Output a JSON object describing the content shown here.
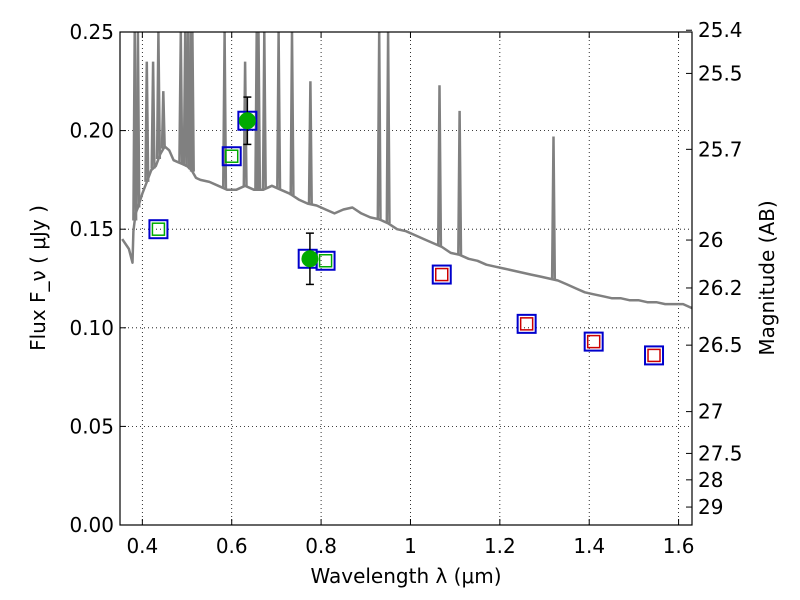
{
  "chart_data": {
    "type": "scatter",
    "xlabel": "Wavelength  λ (μm)",
    "ylabel": "Flux  F_ν  ( μJy )",
    "y2label": "Magnitude (AB)",
    "xlim": [
      0.35,
      1.63
    ],
    "ylim": [
      0.0,
      0.25
    ],
    "xticks": [
      0.4,
      0.6,
      0.8,
      1.0,
      1.2,
      1.4,
      1.6
    ],
    "xtick_labels": [
      "0.4",
      "0.6",
      "0.8",
      "1",
      "1.2",
      "1.4",
      "1.6"
    ],
    "yticks": [
      0.0,
      0.05,
      0.1,
      0.15,
      0.2,
      0.25
    ],
    "ytick_labels": [
      "0.00",
      "0.05",
      "0.10",
      "0.15",
      "0.20",
      "0.25"
    ],
    "y2ticks": [
      {
        "label": "25.4",
        "flux": 0.2509
      },
      {
        "label": "25.5",
        "flux": 0.229
      },
      {
        "label": "25.7",
        "flux": 0.1905
      },
      {
        "label": "26",
        "flux": 0.1445
      },
      {
        "label": "26.2",
        "flux": 0.1202
      },
      {
        "label": "26.5",
        "flux": 0.0912
      },
      {
        "label": "27",
        "flux": 0.0575
      },
      {
        "label": "27.5",
        "flux": 0.0363
      },
      {
        "label": "28",
        "flux": 0.0229
      },
      {
        "label": "29",
        "flux": 0.0091
      }
    ],
    "grid": true,
    "series": [
      {
        "kind": "spectrum",
        "color": "#808080",
        "x": [
          0.355,
          0.37,
          0.378,
          0.38,
          0.385,
          0.39,
          0.4,
          0.41,
          0.42,
          0.43,
          0.44,
          0.45,
          0.46,
          0.47,
          0.48,
          0.49,
          0.5,
          0.51,
          0.52,
          0.53,
          0.55,
          0.57,
          0.59,
          0.61,
          0.63,
          0.65,
          0.67,
          0.69,
          0.71,
          0.73,
          0.75,
          0.77,
          0.79,
          0.81,
          0.83,
          0.85,
          0.87,
          0.89,
          0.91,
          0.93,
          0.95,
          0.97,
          0.99,
          1.01,
          1.03,
          1.05,
          1.07,
          1.09,
          1.11,
          1.13,
          1.15,
          1.17,
          1.19,
          1.21,
          1.23,
          1.25,
          1.27,
          1.29,
          1.31,
          1.33,
          1.35,
          1.37,
          1.39,
          1.41,
          1.43,
          1.45,
          1.47,
          1.49,
          1.51,
          1.53,
          1.55,
          1.57,
          1.59,
          1.61,
          1.63
        ],
        "y": [
          0.145,
          0.14,
          0.133,
          0.149,
          0.158,
          0.161,
          0.168,
          0.174,
          0.18,
          0.182,
          0.188,
          0.192,
          0.19,
          0.185,
          0.184,
          0.183,
          0.182,
          0.18,
          0.176,
          0.175,
          0.174,
          0.172,
          0.17,
          0.17,
          0.172,
          0.17,
          0.17,
          0.172,
          0.17,
          0.168,
          0.165,
          0.163,
          0.162,
          0.16,
          0.158,
          0.16,
          0.161,
          0.158,
          0.156,
          0.155,
          0.153,
          0.15,
          0.149,
          0.147,
          0.145,
          0.143,
          0.141,
          0.138,
          0.137,
          0.135,
          0.134,
          0.132,
          0.131,
          0.13,
          0.129,
          0.128,
          0.127,
          0.126,
          0.125,
          0.124,
          0.122,
          0.12,
          0.118,
          0.117,
          0.116,
          0.115,
          0.115,
          0.114,
          0.114,
          0.113,
          0.113,
          0.112,
          0.112,
          0.112,
          0.11
        ]
      },
      {
        "kind": "emission_lines",
        "color": "#808080",
        "lines": [
          {
            "x": 0.383,
            "peak": 0.25
          },
          {
            "x": 0.39,
            "peak": 0.25
          },
          {
            "x": 0.41,
            "peak": 0.235
          },
          {
            "x": 0.424,
            "peak": 0.235
          },
          {
            "x": 0.436,
            "peak": 0.25
          },
          {
            "x": 0.447,
            "peak": 0.22
          },
          {
            "x": 0.486,
            "peak": 0.25
          },
          {
            "x": 0.496,
            "peak": 0.25
          },
          {
            "x": 0.502,
            "peak": 0.25
          },
          {
            "x": 0.508,
            "peak": 0.25
          },
          {
            "x": 0.512,
            "peak": 0.25
          },
          {
            "x": 0.584,
            "peak": 0.25
          },
          {
            "x": 0.63,
            "peak": 0.235
          },
          {
            "x": 0.656,
            "peak": 0.25
          },
          {
            "x": 0.66,
            "peak": 0.25
          },
          {
            "x": 0.673,
            "peak": 0.25
          },
          {
            "x": 0.705,
            "peak": 0.25
          },
          {
            "x": 0.735,
            "peak": 0.25
          },
          {
            "x": 0.776,
            "peak": 0.225
          },
          {
            "x": 0.93,
            "peak": 0.25
          },
          {
            "x": 0.95,
            "peak": 0.25
          },
          {
            "x": 1.065,
            "peak": 0.223
          },
          {
            "x": 1.11,
            "peak": 0.21
          },
          {
            "x": 1.32,
            "peak": 0.197
          }
        ]
      },
      {
        "kind": "model_points_blue",
        "color": "#0000cc",
        "x": [
          0.436,
          0.6,
          0.635,
          0.77,
          0.81,
          1.07,
          1.26,
          1.41,
          1.545
        ],
        "y": [
          0.15,
          0.187,
          0.205,
          0.135,
          0.134,
          0.127,
          0.102,
          0.093,
          0.086
        ]
      },
      {
        "kind": "model_points_green",
        "color": "#00aa00",
        "x": [
          0.436,
          0.6,
          0.81
        ],
        "y": [
          0.15,
          0.187,
          0.134
        ]
      },
      {
        "kind": "model_points_red",
        "color": "#cc0000",
        "x": [
          1.07,
          1.26,
          1.41,
          1.545
        ],
        "y": [
          0.127,
          0.102,
          0.093,
          0.086
        ]
      },
      {
        "kind": "observed",
        "color": "#00aa00",
        "x": [
          0.635,
          0.775
        ],
        "y": [
          0.205,
          0.135
        ],
        "yerr": [
          0.012,
          0.013
        ]
      }
    ]
  }
}
